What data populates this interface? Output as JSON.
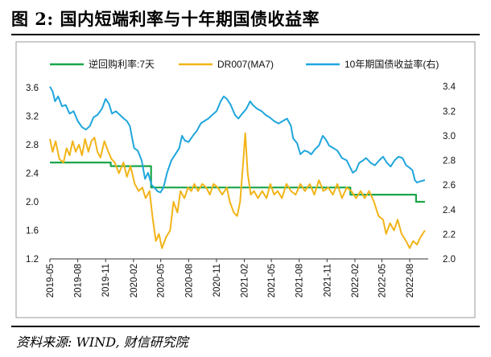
{
  "header": {
    "title": "图 2:  国内短端利率与十年期国债收益率"
  },
  "footer": {
    "source": "资料来源: WIND, 财信研究院"
  },
  "chart_data": {
    "type": "line",
    "title": "图 2:  国内短端利率与十年期国债收益率",
    "x_ticks": [
      "2019-05",
      "2019-08",
      "2019-11",
      "2020-02",
      "2020-05",
      "2020-08",
      "2020-11",
      "2021-02",
      "2021-05",
      "2021-08",
      "2021-11",
      "2022-02",
      "2022-05",
      "2022-08"
    ],
    "x_range": [
      "2019-05-01",
      "2022-10-01"
    ],
    "y_left": {
      "ticks": [
        "1.2",
        "1.6",
        "2.0",
        "2.4",
        "2.8",
        "3.2",
        "3.6"
      ],
      "range": [
        1.2,
        3.7
      ]
    },
    "y_right": {
      "ticks": [
        "2.0",
        "2.2",
        "2.4",
        "2.6",
        "2.8",
        "3.0",
        "3.2",
        "3.4"
      ],
      "range": [
        2.0,
        3.45
      ]
    },
    "legend_placement": "top",
    "series": [
      {
        "name": "逆回购利率:7天",
        "axis": "left",
        "color": "#1aa64a",
        "step": true,
        "points": [
          [
            "2019-05-01",
            2.55
          ],
          [
            "2019-11-18",
            2.5
          ],
          [
            "2020-03-30",
            2.2
          ],
          [
            "2021-12-31",
            2.2
          ],
          [
            "2022-01-17",
            2.1
          ],
          [
            "2022-08-22",
            2.0
          ],
          [
            "2022-09-20",
            2.0
          ]
        ]
      },
      {
        "name": "DR007(MA7)",
        "axis": "left",
        "color": "#f2b418",
        "points": [
          [
            "2019-05-01",
            2.88
          ],
          [
            "2019-05-10",
            2.7
          ],
          [
            "2019-05-20",
            2.85
          ],
          [
            "2019-06-01",
            2.6
          ],
          [
            "2019-06-15",
            2.55
          ],
          [
            "2019-06-25",
            2.75
          ],
          [
            "2019-07-05",
            2.65
          ],
          [
            "2019-07-15",
            2.85
          ],
          [
            "2019-07-25",
            2.7
          ],
          [
            "2019-08-05",
            2.8
          ],
          [
            "2019-08-15",
            2.65
          ],
          [
            "2019-08-25",
            2.88
          ],
          [
            "2019-09-05",
            2.7
          ],
          [
            "2019-09-15",
            2.85
          ],
          [
            "2019-09-25",
            2.9
          ],
          [
            "2019-10-05",
            2.7
          ],
          [
            "2019-10-15",
            2.62
          ],
          [
            "2019-10-28",
            2.85
          ],
          [
            "2019-11-08",
            2.72
          ],
          [
            "2019-11-20",
            2.6
          ],
          [
            "2019-12-01",
            2.55
          ],
          [
            "2019-12-15",
            2.4
          ],
          [
            "2019-12-30",
            2.55
          ],
          [
            "2020-01-10",
            2.35
          ],
          [
            "2020-01-22",
            2.5
          ],
          [
            "2020-02-05",
            2.25
          ],
          [
            "2020-02-18",
            2.15
          ],
          [
            "2020-03-01",
            2.2
          ],
          [
            "2020-03-12",
            2.05
          ],
          [
            "2020-03-25",
            2.15
          ],
          [
            "2020-04-05",
            1.75
          ],
          [
            "2020-04-15",
            1.45
          ],
          [
            "2020-04-25",
            1.55
          ],
          [
            "2020-05-05",
            1.35
          ],
          [
            "2020-05-18",
            1.5
          ],
          [
            "2020-06-01",
            1.6
          ],
          [
            "2020-06-12",
            2.0
          ],
          [
            "2020-06-25",
            1.85
          ],
          [
            "2020-07-05",
            2.15
          ],
          [
            "2020-07-18",
            2.05
          ],
          [
            "2020-07-30",
            2.2
          ],
          [
            "2020-08-10",
            2.15
          ],
          [
            "2020-08-20",
            2.25
          ],
          [
            "2020-09-01",
            2.15
          ],
          [
            "2020-09-15",
            2.25
          ],
          [
            "2020-09-28",
            2.2
          ],
          [
            "2020-10-10",
            2.1
          ],
          [
            "2020-10-22",
            2.25
          ],
          [
            "2020-11-05",
            2.2
          ],
          [
            "2020-11-20",
            2.1
          ],
          [
            "2020-12-05",
            2.2
          ],
          [
            "2020-12-15",
            2.0
          ],
          [
            "2020-12-28",
            1.85
          ],
          [
            "2021-01-08",
            1.8
          ],
          [
            "2021-01-18",
            2.0
          ],
          [
            "2021-01-28",
            2.55
          ],
          [
            "2021-02-04",
            2.96
          ],
          [
            "2021-02-12",
            2.4
          ],
          [
            "2021-02-22",
            2.1
          ],
          [
            "2021-03-05",
            2.15
          ],
          [
            "2021-03-18",
            2.05
          ],
          [
            "2021-04-01",
            2.15
          ],
          [
            "2021-04-15",
            2.05
          ],
          [
            "2021-04-28",
            2.25
          ],
          [
            "2021-05-10",
            2.1
          ],
          [
            "2021-05-22",
            2.15
          ],
          [
            "2021-06-05",
            2.05
          ],
          [
            "2021-06-20",
            2.25
          ],
          [
            "2021-07-05",
            2.15
          ],
          [
            "2021-07-20",
            2.1
          ],
          [
            "2021-08-05",
            2.25
          ],
          [
            "2021-08-20",
            2.15
          ],
          [
            "2021-09-05",
            2.25
          ],
          [
            "2021-09-20",
            2.1
          ],
          [
            "2021-10-05",
            2.3
          ],
          [
            "2021-10-20",
            2.15
          ],
          [
            "2021-11-05",
            2.2
          ],
          [
            "2021-11-20",
            2.1
          ],
          [
            "2021-12-05",
            2.25
          ],
          [
            "2021-12-20",
            2.05
          ],
          [
            "2022-01-05",
            2.2
          ],
          [
            "2022-01-20",
            2.15
          ],
          [
            "2022-02-05",
            2.05
          ],
          [
            "2022-02-20",
            2.15
          ],
          [
            "2022-03-05",
            2.05
          ],
          [
            "2022-03-20",
            2.15
          ],
          [
            "2022-04-05",
            2.0
          ],
          [
            "2022-04-20",
            1.8
          ],
          [
            "2022-05-05",
            1.75
          ],
          [
            "2022-05-15",
            1.55
          ],
          [
            "2022-05-28",
            1.7
          ],
          [
            "2022-06-10",
            1.6
          ],
          [
            "2022-06-22",
            1.75
          ],
          [
            "2022-07-05",
            1.55
          ],
          [
            "2022-07-20",
            1.45
          ],
          [
            "2022-08-01",
            1.35
          ],
          [
            "2022-08-12",
            1.45
          ],
          [
            "2022-08-25",
            1.4
          ],
          [
            "2022-09-05",
            1.5
          ],
          [
            "2022-09-20",
            1.6
          ]
        ]
      },
      {
        "name": "10年期国债收益率(右)",
        "axis": "right",
        "color": "#1fa6dc",
        "points": [
          [
            "2019-05-01",
            3.4
          ],
          [
            "2019-05-10",
            3.36
          ],
          [
            "2019-05-18",
            3.28
          ],
          [
            "2019-05-28",
            3.32
          ],
          [
            "2019-06-10",
            3.24
          ],
          [
            "2019-06-22",
            3.25
          ],
          [
            "2019-07-05",
            3.18
          ],
          [
            "2019-07-18",
            3.2
          ],
          [
            "2019-08-01",
            3.12
          ],
          [
            "2019-08-15",
            3.07
          ],
          [
            "2019-08-28",
            3.05
          ],
          [
            "2019-09-10",
            3.08
          ],
          [
            "2019-09-22",
            3.15
          ],
          [
            "2019-10-05",
            3.17
          ],
          [
            "2019-10-20",
            3.22
          ],
          [
            "2019-11-01",
            3.3
          ],
          [
            "2019-11-12",
            3.26
          ],
          [
            "2019-11-22",
            3.18
          ],
          [
            "2019-12-05",
            3.2
          ],
          [
            "2019-12-18",
            3.17
          ],
          [
            "2019-12-31",
            3.14
          ],
          [
            "2020-01-10",
            3.12
          ],
          [
            "2020-01-20",
            3.08
          ],
          [
            "2020-02-03",
            2.9
          ],
          [
            "2020-02-15",
            2.88
          ],
          [
            "2020-02-28",
            2.8
          ],
          [
            "2020-03-10",
            2.65
          ],
          [
            "2020-03-20",
            2.7
          ],
          [
            "2020-04-01",
            2.6
          ],
          [
            "2020-04-10",
            2.58
          ],
          [
            "2020-04-20",
            2.55
          ],
          [
            "2020-04-30",
            2.54
          ],
          [
            "2020-05-10",
            2.58
          ],
          [
            "2020-05-22",
            2.7
          ],
          [
            "2020-06-05",
            2.8
          ],
          [
            "2020-06-18",
            2.85
          ],
          [
            "2020-07-01",
            2.9
          ],
          [
            "2020-07-10",
            3.0
          ],
          [
            "2020-07-20",
            2.96
          ],
          [
            "2020-08-01",
            2.95
          ],
          [
            "2020-08-15",
            3.0
          ],
          [
            "2020-08-28",
            3.04
          ],
          [
            "2020-09-10",
            3.1
          ],
          [
            "2020-09-22",
            3.12
          ],
          [
            "2020-10-05",
            3.14
          ],
          [
            "2020-10-18",
            3.17
          ],
          [
            "2020-11-01",
            3.2
          ],
          [
            "2020-11-15",
            3.28
          ],
          [
            "2020-11-25",
            3.32
          ],
          [
            "2020-12-05",
            3.3
          ],
          [
            "2020-12-18",
            3.25
          ],
          [
            "2021-01-01",
            3.17
          ],
          [
            "2021-01-12",
            3.14
          ],
          [
            "2021-01-25",
            3.18
          ],
          [
            "2021-02-08",
            3.22
          ],
          [
            "2021-02-20",
            3.28
          ],
          [
            "2021-03-01",
            3.25
          ],
          [
            "2021-03-15",
            3.22
          ],
          [
            "2021-03-30",
            3.2
          ],
          [
            "2021-04-12",
            3.17
          ],
          [
            "2021-04-25",
            3.15
          ],
          [
            "2021-05-10",
            3.12
          ],
          [
            "2021-05-25",
            3.1
          ],
          [
            "2021-06-08",
            3.12
          ],
          [
            "2021-06-22",
            3.14
          ],
          [
            "2021-07-05",
            3.08
          ],
          [
            "2021-07-12",
            2.98
          ],
          [
            "2021-07-25",
            2.94
          ],
          [
            "2021-08-05",
            2.85
          ],
          [
            "2021-08-18",
            2.88
          ],
          [
            "2021-08-30",
            2.87
          ],
          [
            "2021-09-10",
            2.85
          ],
          [
            "2021-09-22",
            2.89
          ],
          [
            "2021-10-05",
            2.92
          ],
          [
            "2021-10-18",
            3.0
          ],
          [
            "2021-10-28",
            2.97
          ],
          [
            "2021-11-08",
            2.92
          ],
          [
            "2021-11-22",
            2.9
          ],
          [
            "2021-12-05",
            2.88
          ],
          [
            "2021-12-20",
            2.82
          ],
          [
            "2022-01-05",
            2.8
          ],
          [
            "2022-01-15",
            2.75
          ],
          [
            "2022-01-25",
            2.7
          ],
          [
            "2022-02-05",
            2.72
          ],
          [
            "2022-02-15",
            2.78
          ],
          [
            "2022-02-28",
            2.8
          ],
          [
            "2022-03-10",
            2.82
          ],
          [
            "2022-03-25",
            2.78
          ],
          [
            "2022-04-08",
            2.76
          ],
          [
            "2022-04-22",
            2.8
          ],
          [
            "2022-05-05",
            2.83
          ],
          [
            "2022-05-18",
            2.78
          ],
          [
            "2022-05-30",
            2.75
          ],
          [
            "2022-06-12",
            2.8
          ],
          [
            "2022-06-25",
            2.83
          ],
          [
            "2022-07-08",
            2.82
          ],
          [
            "2022-07-20",
            2.76
          ],
          [
            "2022-08-01",
            2.74
          ],
          [
            "2022-08-10",
            2.72
          ],
          [
            "2022-08-18",
            2.64
          ],
          [
            "2022-08-25",
            2.62
          ],
          [
            "2022-09-05",
            2.63
          ],
          [
            "2022-09-20",
            2.64
          ]
        ]
      }
    ]
  }
}
